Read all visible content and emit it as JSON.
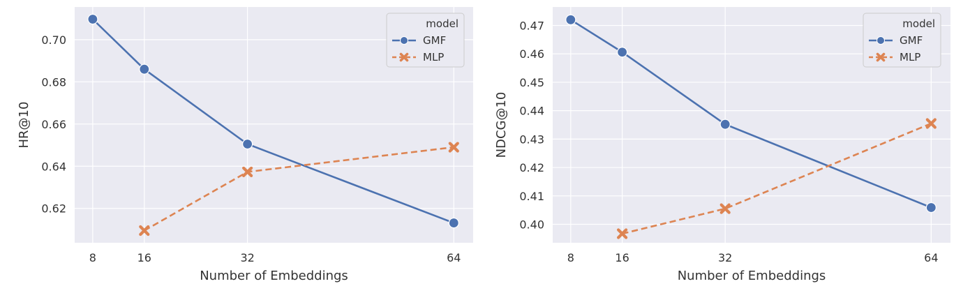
{
  "chart_data": [
    {
      "type": "line",
      "xlabel": "Number of Embeddings",
      "ylabel": "HR@10",
      "x": [
        8,
        16,
        32,
        64
      ],
      "xticks": [
        8,
        16,
        32,
        64
      ],
      "xlim": [
        5.2,
        67
      ],
      "ylim": [
        0.6037,
        0.7155
      ],
      "yticks": [
        "0.62",
        "0.64",
        "0.66",
        "0.68",
        "0.70"
      ],
      "grid": true,
      "legend": {
        "title": "model",
        "placement": "top-right"
      },
      "series": [
        {
          "name": "GMF",
          "color": "#4c72b0",
          "marker": "circle",
          "dash": "solid",
          "points": [
            [
              8,
              0.7097
            ],
            [
              16,
              0.686
            ],
            [
              32,
              0.6505
            ],
            [
              64,
              0.6131
            ]
          ]
        },
        {
          "name": "MLP",
          "color": "#dd8452",
          "marker": "x",
          "dash": "dashed",
          "points": [
            [
              16,
              0.6095
            ],
            [
              32,
              0.6373
            ],
            [
              64,
              0.649
            ]
          ]
        }
      ]
    },
    {
      "type": "line",
      "xlabel": "Number of Embeddings",
      "ylabel": "NDCG@10",
      "x": [
        8,
        16,
        32,
        64
      ],
      "xticks": [
        8,
        16,
        32,
        64
      ],
      "xlim": [
        5.2,
        67
      ],
      "ylim": [
        0.3935,
        0.4765
      ],
      "yticks": [
        "0.40",
        "0.41",
        "0.42",
        "0.43",
        "0.44",
        "0.45",
        "0.46",
        "0.47"
      ],
      "grid": true,
      "legend": {
        "title": "model",
        "placement": "top-right"
      },
      "series": [
        {
          "name": "GMF",
          "color": "#4c72b0",
          "marker": "circle",
          "dash": "solid",
          "points": [
            [
              8,
              0.472
            ],
            [
              16,
              0.4606
            ],
            [
              32,
              0.4352
            ],
            [
              64,
              0.4059
            ]
          ]
        },
        {
          "name": "MLP",
          "color": "#dd8452",
          "marker": "x",
          "dash": "dashed",
          "points": [
            [
              16,
              0.3967
            ],
            [
              32,
              0.4055
            ],
            [
              64,
              0.4355
            ]
          ]
        }
      ]
    }
  ]
}
